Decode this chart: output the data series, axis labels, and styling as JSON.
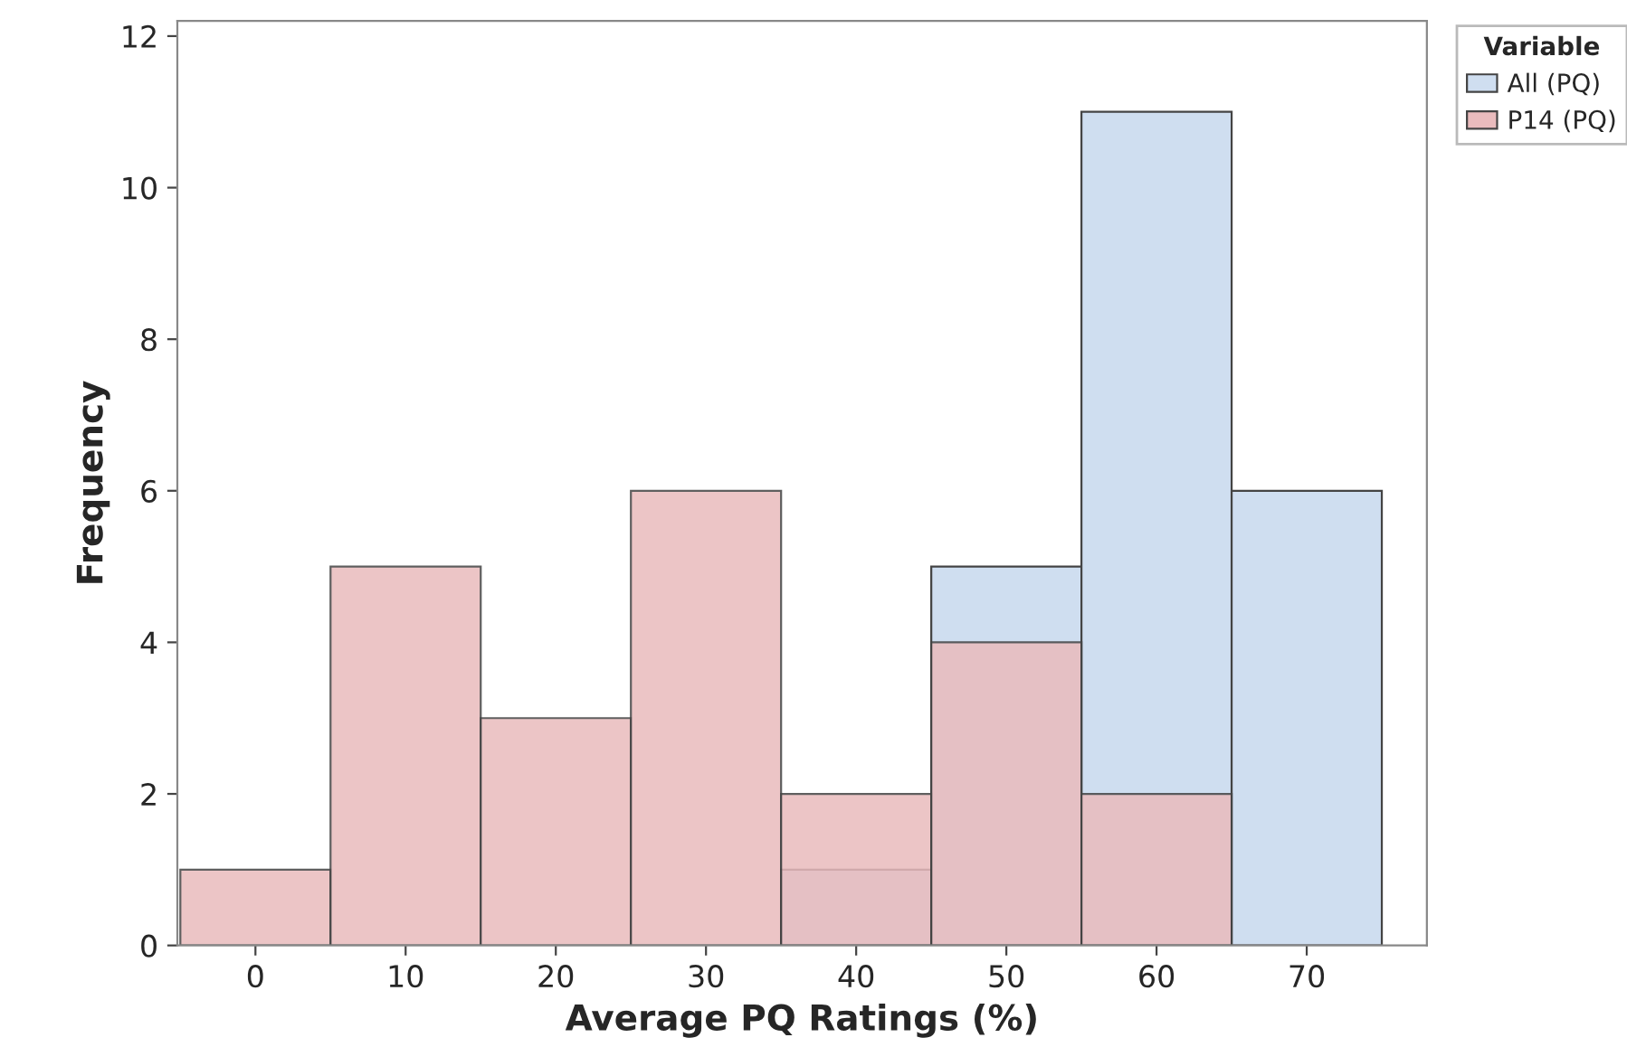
{
  "chart_data": {
    "type": "histogram",
    "xlabel": "Average PQ Ratings (%)",
    "ylabel": "Frequency",
    "legend_title": "Variable",
    "bins": [
      -5,
      5,
      15,
      25,
      35,
      45,
      55,
      65,
      75
    ],
    "series": [
      {
        "name": "All (PQ)",
        "color": "#cfdef0",
        "values": [
          0,
          0,
          0,
          0,
          1,
          5,
          11,
          6
        ]
      },
      {
        "name": "P14 (PQ)",
        "color": "#e9bbbd",
        "values": [
          1,
          5,
          3,
          6,
          2,
          4,
          2,
          0
        ]
      }
    ],
    "xlim": [
      -5.2,
      78
    ],
    "ylim": [
      0,
      12.2
    ],
    "xticks": [
      0,
      10,
      20,
      30,
      40,
      50,
      60,
      70
    ],
    "yticks": [
      0,
      2,
      4,
      6,
      8,
      10,
      12
    ],
    "grid": false,
    "legend": "top right"
  }
}
